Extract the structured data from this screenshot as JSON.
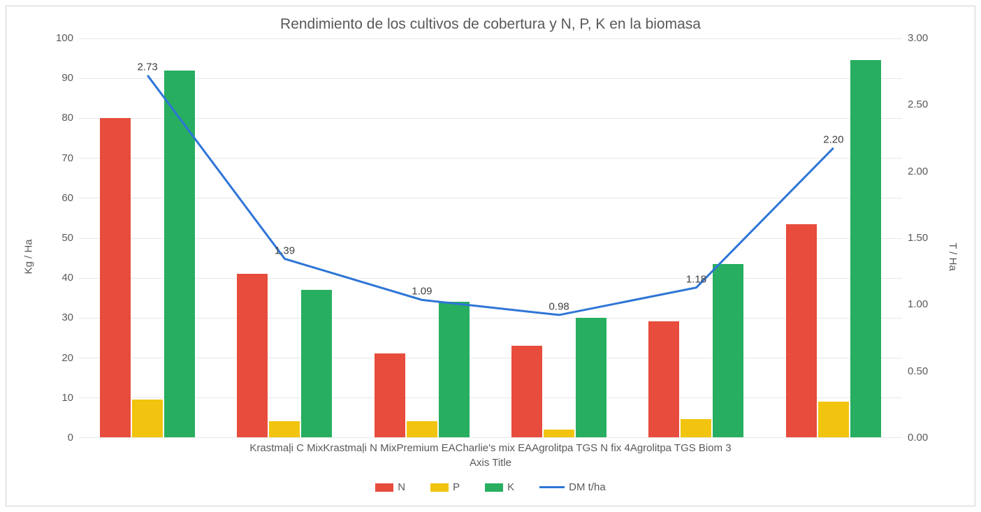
{
  "chart": {
    "type": "bar+line",
    "title": "Rendimiento de los cultivos de cobertura y N, P, K en la biomasa",
    "title_fontsize": 21,
    "title_color": "#595959",
    "background_color": "#ffffff",
    "border_color": "#d0d0d0",
    "grid_color": "#e8e8e8",
    "text_color": "#595959",
    "label_fontsize": 15,
    "categories": [
      "Krastmaļi C Mix",
      "Krastmaļi N Mix",
      "Premium EA",
      "Charlie's mix EA",
      "Agrolitpa TGS N fix 4",
      "Agrolitpa TGS Biom 3"
    ],
    "x_axis_title": "Axis Title",
    "left_axis": {
      "label": "Kg / Ha",
      "min": 0,
      "max": 100,
      "step": 10,
      "ticks": [
        "100",
        "90",
        "80",
        "70",
        "60",
        "50",
        "40",
        "30",
        "20",
        "10",
        "0"
      ]
    },
    "right_axis": {
      "label": "T / Ha",
      "min": 0.0,
      "max": 3.0,
      "step": 0.5,
      "ticks": [
        "3.00",
        "2.50",
        "2.00",
        "1.50",
        "1.00",
        "0.50",
        "0.00"
      ]
    },
    "series_bars": [
      {
        "name": "N",
        "color": "#e74c3c",
        "values": [
          80,
          41,
          21,
          23,
          29,
          53.5
        ]
      },
      {
        "name": "P",
        "color": "#f1c40f",
        "values": [
          9.5,
          4,
          4,
          2,
          4.5,
          9
        ]
      },
      {
        "name": "K",
        "color": "#27ae60",
        "values": [
          92,
          37,
          34,
          30,
          43.5,
          94.5
        ]
      }
    ],
    "series_line": {
      "name": "DM t/ha",
      "color": "#2e75d6",
      "width": 3,
      "values": [
        2.73,
        1.39,
        1.09,
        0.98,
        1.18,
        2.2
      ],
      "labels": [
        "2.73",
        "1.39",
        "1.09",
        "0.98",
        "1.18",
        "2.20"
      ]
    },
    "bar_width_ratio": 0.7,
    "legend": {
      "items": [
        {
          "label": "N",
          "type": "swatch",
          "color": "#e74c3c"
        },
        {
          "label": "P",
          "type": "swatch",
          "color": "#f1c40f"
        },
        {
          "label": "K",
          "type": "swatch",
          "color": "#27ae60"
        },
        {
          "label": "DM t/ha",
          "type": "line",
          "color": "#2e75d6"
        }
      ]
    }
  }
}
